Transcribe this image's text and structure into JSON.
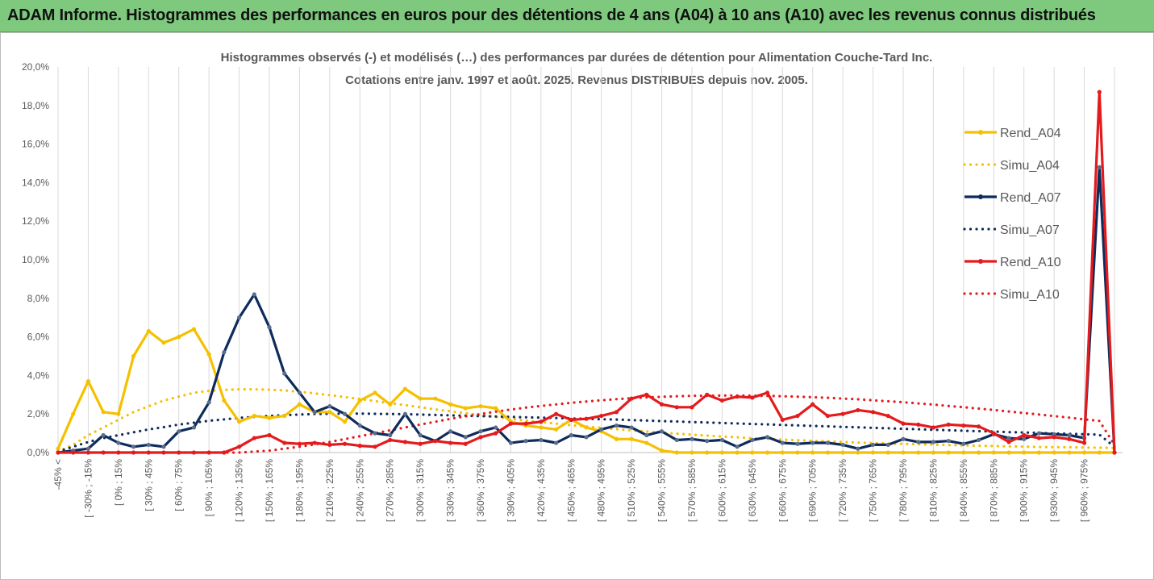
{
  "header": {
    "title": "ADAM Informe. Histogrammes des performances en euros pour des détentions de 4 ans (A04) à 10 ans (A10) avec les revenus connus distribués"
  },
  "chart_data": {
    "type": "line",
    "title": "Histogrammes observés (-) et modélisés (…) des performances par durées de détention pour Alimentation Couche-Tard Inc.",
    "subtitle": "Cotations entre janv. 1997 et août. 2025. Revenus DISTRIBUES depuis nov. 2005.",
    "xlabel": "",
    "ylabel": "",
    "ylim": [
      0,
      20
    ],
    "y_ticks": [
      "0,0%",
      "2,0%",
      "4,0%",
      "6,0%",
      "8,0%",
      "10,0%",
      "12,0%",
      "14,0%",
      "16,0%",
      "18,0%",
      "20,0%"
    ],
    "grid": "vertical",
    "legend_position": "right",
    "x_labels": [
      "-45% <",
      "[ -30% ; -15%",
      "[ 0% ; 15%",
      "[ 30% ; 45%",
      "[ 60% ; 75%",
      "[ 90% ; 105%",
      "[ 120% ; 135%",
      "[ 150% ; 165%",
      "[ 180% ; 195%",
      "[ 210% ; 225%",
      "[ 240% ; 255%",
      "[ 270% ; 285%",
      "[ 300% ; 315%",
      "[ 330% ; 345%",
      "[ 360% ; 375%",
      "[ 390% ; 405%",
      "[ 420% ; 435%",
      "[ 450% ; 465%",
      "[ 480% ; 495%",
      "[ 510% ; 525%",
      "[ 540% ; 555%",
      "[ 570% ; 585%",
      "[ 600% ; 615%",
      "[ 630% ; 645%",
      "[ 660% ; 675%",
      "[ 690% ; 705%",
      "[ 720% ; 735%",
      "[ 750% ; 765%",
      "[ 780% ; 795%",
      "[ 810% ; 825%",
      "[ 840% ; 855%",
      "[ 870% ; 885%",
      "[ 900% ; 915%",
      "[ 930% ; 945%",
      "[ 960% ; 975%"
    ],
    "series": [
      {
        "name": "Rend_A04",
        "color": "#F5C000",
        "style": "solid",
        "values": [
          0.2,
          2.0,
          3.7,
          2.1,
          2.0,
          5.0,
          6.3,
          5.7,
          6.0,
          6.4,
          5.1,
          2.7,
          1.6,
          1.9,
          1.8,
          1.9,
          2.5,
          2.1,
          2.1,
          1.6,
          2.7,
          3.1,
          2.5,
          3.3,
          2.8,
          2.8,
          2.5,
          2.3,
          2.4,
          2.3,
          1.6,
          1.4,
          1.3,
          1.2,
          1.7,
          1.3,
          1.1,
          0.7,
          0.7,
          0.5,
          0.1,
          0,
          0,
          0,
          0,
          0,
          0,
          0,
          0,
          0,
          0,
          0,
          0,
          0,
          0,
          0,
          0,
          0,
          0,
          0,
          0,
          0,
          0,
          0,
          0,
          0,
          0,
          0,
          0,
          0,
          0
        ]
      },
      {
        "name": "Simu_A04",
        "color": "#F5C000",
        "style": "dotted",
        "values": [
          0.05,
          0.4,
          0.9,
          1.3,
          1.7,
          2.1,
          2.4,
          2.7,
          2.9,
          3.1,
          3.2,
          3.25,
          3.28,
          3.28,
          3.26,
          3.22,
          3.15,
          3.07,
          2.98,
          2.88,
          2.78,
          2.67,
          2.56,
          2.46,
          2.35,
          2.24,
          2.14,
          2.04,
          1.94,
          1.85,
          1.75,
          1.66,
          1.58,
          1.5,
          1.42,
          1.35,
          1.28,
          1.21,
          1.15,
          1.09,
          1.03,
          0.98,
          0.93,
          0.88,
          0.83,
          0.79,
          0.75,
          0.71,
          0.67,
          0.64,
          0.61,
          0.58,
          0.55,
          0.52,
          0.49,
          0.47,
          0.45,
          0.43,
          0.41,
          0.39,
          0.37,
          0.35,
          0.34,
          0.32,
          0.31,
          0.29,
          0.28,
          0.27,
          0.26,
          0.25,
          0.24
        ]
      },
      {
        "name": "Rend_A07",
        "color": "#0E2B5C",
        "style": "solid",
        "values": [
          0,
          0.1,
          0.2,
          0.9,
          0.5,
          0.3,
          0.4,
          0.3,
          1.1,
          1.3,
          2.6,
          5.2,
          7.0,
          8.2,
          6.5,
          4.1,
          3.1,
          2.1,
          2.4,
          2.0,
          1.4,
          1.0,
          0.9,
          2.0,
          0.9,
          0.6,
          1.1,
          0.8,
          1.1,
          1.3,
          0.5,
          0.6,
          0.65,
          0.5,
          0.9,
          0.8,
          1.2,
          1.4,
          1.3,
          0.9,
          1.1,
          0.65,
          0.7,
          0.6,
          0.65,
          0.3,
          0.65,
          0.8,
          0.5,
          0.45,
          0.5,
          0.5,
          0.4,
          0.2,
          0.4,
          0.4,
          0.7,
          0.55,
          0.55,
          0.6,
          0.45,
          0.65,
          0.95,
          0.75,
          0.7,
          1.0,
          0.95,
          0.9,
          0.75,
          14.8,
          0
        ]
      },
      {
        "name": "Simu_A07",
        "color": "#0E2B5C",
        "style": "dotted",
        "values": [
          0.05,
          0.3,
          0.55,
          0.75,
          0.9,
          1.05,
          1.2,
          1.32,
          1.45,
          1.55,
          1.65,
          1.72,
          1.8,
          1.85,
          1.9,
          1.94,
          1.97,
          2.0,
          2.01,
          2.02,
          2.02,
          2.01,
          2.0,
          1.99,
          1.97,
          1.95,
          1.93,
          1.91,
          1.89,
          1.87,
          1.85,
          1.83,
          1.81,
          1.79,
          1.77,
          1.75,
          1.73,
          1.71,
          1.68,
          1.66,
          1.63,
          1.61,
          1.58,
          1.56,
          1.53,
          1.51,
          1.48,
          1.46,
          1.43,
          1.41,
          1.38,
          1.36,
          1.33,
          1.31,
          1.28,
          1.26,
          1.23,
          1.21,
          1.18,
          1.16,
          1.13,
          1.11,
          1.09,
          1.06,
          1.04,
          1.02,
          0.99,
          0.97,
          0.95,
          0.93,
          0.3
        ]
      },
      {
        "name": "Rend_A10",
        "color": "#E41A1C",
        "style": "solid",
        "values": [
          0,
          0,
          0,
          0,
          0,
          0,
          0,
          0,
          0,
          0,
          0,
          0,
          0.3,
          0.75,
          0.9,
          0.5,
          0.45,
          0.5,
          0.4,
          0.45,
          0.35,
          0.3,
          0.65,
          0.55,
          0.45,
          0.6,
          0.5,
          0.45,
          0.8,
          1.0,
          1.5,
          1.5,
          1.6,
          2.0,
          1.7,
          1.75,
          1.9,
          2.1,
          2.8,
          3.0,
          2.5,
          2.35,
          2.35,
          3.0,
          2.7,
          2.9,
          2.85,
          3.1,
          1.7,
          1.9,
          2.5,
          1.9,
          2.0,
          2.2,
          2.1,
          1.9,
          1.5,
          1.45,
          1.3,
          1.45,
          1.4,
          1.35,
          1.0,
          0.55,
          0.9,
          0.75,
          0.8,
          0.7,
          0.5,
          18.7,
          0
        ]
      },
      {
        "name": "Simu_A10",
        "color": "#E41A1C",
        "style": "dotted",
        "values": [
          0,
          0,
          0,
          0,
          0,
          0,
          0,
          0,
          0,
          0,
          0,
          0,
          0,
          0.05,
          0.1,
          0.2,
          0.3,
          0.42,
          0.55,
          0.7,
          0.85,
          1.0,
          1.15,
          1.3,
          1.45,
          1.6,
          1.75,
          1.88,
          2.0,
          2.12,
          2.23,
          2.33,
          2.42,
          2.5,
          2.58,
          2.65,
          2.71,
          2.77,
          2.82,
          2.86,
          2.89,
          2.92,
          2.94,
          2.95,
          2.96,
          2.96,
          2.95,
          2.94,
          2.92,
          2.9,
          2.87,
          2.84,
          2.8,
          2.76,
          2.71,
          2.66,
          2.61,
          2.55,
          2.49,
          2.42,
          2.35,
          2.28,
          2.21,
          2.13,
          2.05,
          1.97,
          1.89,
          1.81,
          1.72,
          1.64,
          0.4
        ]
      }
    ]
  }
}
